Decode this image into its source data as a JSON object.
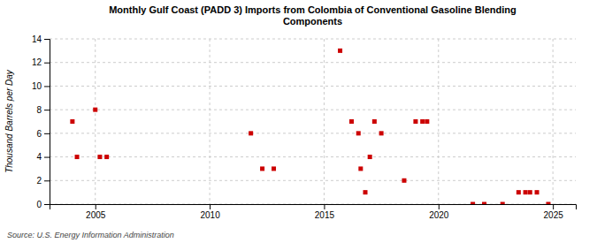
{
  "chart_data": {
    "type": "scatter",
    "title": "Monthly Gulf Coast (PADD 3) Imports from Colombia of Conventional Gasoline Blending\nComponents",
    "ylabel": "Thousand Barrels per Day",
    "annotations": [
      "Source: U.S. Energy Information Administration"
    ],
    "color": "#cc0000",
    "marker": "square",
    "grid": true,
    "xlim": [
      2003,
      2026
    ],
    "ylim": [
      0,
      14
    ],
    "xticks": [
      2005,
      2010,
      2015,
      2020,
      2025
    ],
    "yticks": [
      0,
      2,
      4,
      6,
      8,
      10,
      12,
      14
    ],
    "x": [
      2004.0,
      2004.2,
      2005.0,
      2005.2,
      2005.5,
      2011.8,
      2012.3,
      2012.8,
      2015.7,
      2016.2,
      2016.5,
      2016.6,
      2016.8,
      2017.0,
      2017.2,
      2017.5,
      2018.5,
      2019.0,
      2019.3,
      2019.5,
      2021.5,
      2022.0,
      2022.8,
      2023.5,
      2023.8,
      2024.0,
      2024.3,
      2024.8
    ],
    "values": [
      7,
      4,
      8,
      4,
      4,
      6,
      3,
      3,
      13,
      7,
      6,
      3,
      1,
      4,
      7,
      6,
      2,
      7,
      7,
      7,
      0,
      0,
      0,
      1,
      1,
      1,
      1,
      0
    ]
  }
}
